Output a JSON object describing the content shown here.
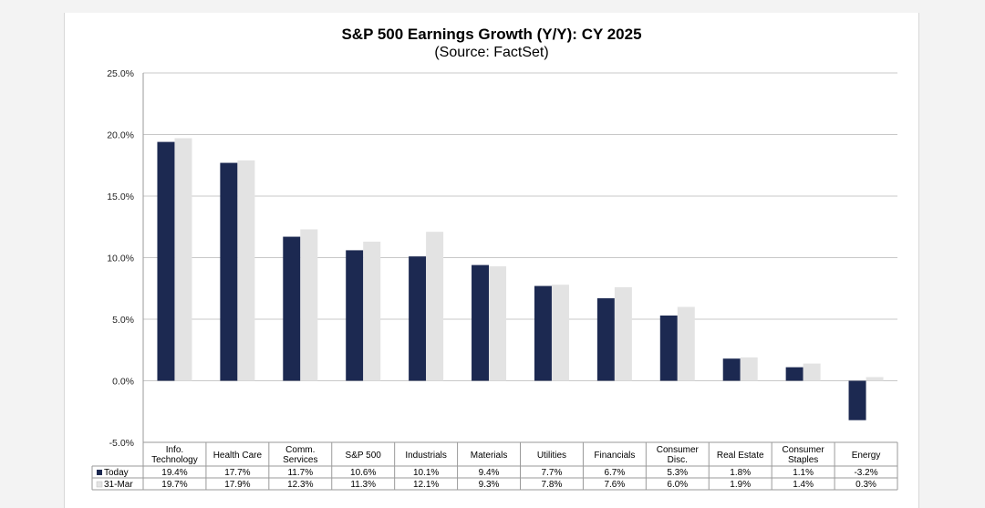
{
  "chart_data": {
    "type": "bar",
    "title": "S&P 500 Earnings Growth (Y/Y): CY 2025",
    "subtitle": "(Source: FactSet)",
    "categories": [
      [
        "Info.",
        "Technology"
      ],
      [
        "Health Care"
      ],
      [
        "Comm.",
        "Services"
      ],
      [
        "S&P 500"
      ],
      [
        "Industrials"
      ],
      [
        "Materials"
      ],
      [
        "Utilities"
      ],
      [
        "Financials"
      ],
      [
        "Consumer",
        "Disc."
      ],
      [
        "Real Estate"
      ],
      [
        "Consumer",
        "Staples"
      ],
      [
        "Energy"
      ]
    ],
    "series": [
      {
        "name": "Today",
        "color": "#1c2951",
        "values": [
          19.4,
          17.7,
          11.7,
          10.6,
          10.1,
          9.4,
          7.7,
          6.7,
          5.3,
          1.8,
          1.1,
          -3.2
        ],
        "labels": [
          "19.4%",
          "17.7%",
          "11.7%",
          "10.6%",
          "10.1%",
          "9.4%",
          "7.7%",
          "6.7%",
          "5.3%",
          "1.8%",
          "1.1%",
          "-3.2%"
        ]
      },
      {
        "name": "31-Mar",
        "color": "#e3e3e3",
        "values": [
          19.7,
          17.9,
          12.3,
          11.3,
          12.1,
          9.3,
          7.8,
          7.6,
          6.0,
          1.9,
          1.4,
          0.3
        ],
        "labels": [
          "19.7%",
          "17.9%",
          "12.3%",
          "11.3%",
          "12.1%",
          "9.3%",
          "7.8%",
          "7.6%",
          "6.0%",
          "1.9%",
          "1.4%",
          "0.3%"
        ]
      }
    ],
    "ylim": [
      -5,
      25
    ],
    "yticks": [
      25,
      20,
      15,
      10,
      5,
      0,
      -5
    ],
    "ytick_labels": [
      "25.0%",
      "20.0%",
      "15.0%",
      "10.0%",
      "5.0%",
      "0.0%",
      "-5.0%"
    ],
    "grid": true,
    "legend": "data-table"
  }
}
